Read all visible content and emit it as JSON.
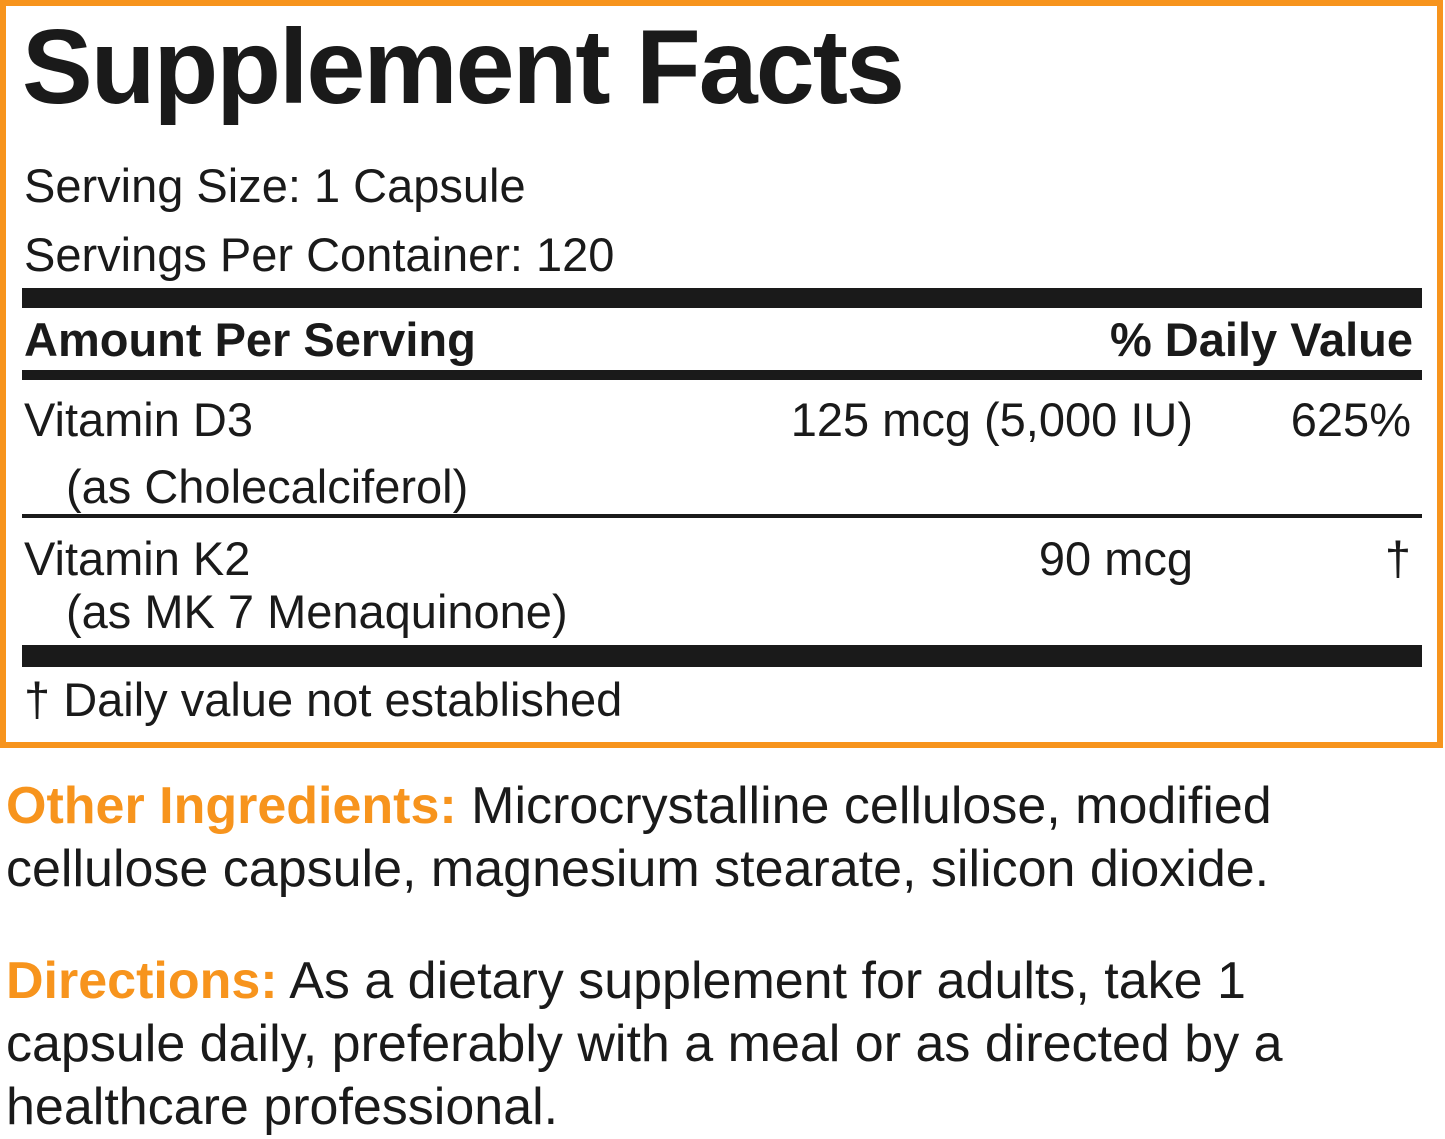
{
  "title": "Supplement Facts",
  "serving_size": "Serving Size: 1 Capsule",
  "servings_per_container": "Servings Per Container: 120",
  "header": {
    "amount": "Amount Per Serving",
    "daily_value": "% Daily Value"
  },
  "rows": [
    {
      "name": "Vitamin D3",
      "source": "(as Cholecalciferol)",
      "amount": "125 mcg (5,000 IU)",
      "daily_value": "625%"
    },
    {
      "name": "Vitamin K2",
      "source": "(as MK 7 Menaquinone)",
      "amount": "90 mcg",
      "daily_value": "†"
    }
  ],
  "footnote": "† Daily value not established",
  "other_ingredients": {
    "label": "Other Ingredients:",
    "text": "Microcrystalline cellulose, modified cellulose capsule, magnesium stearate, silicon dioxide."
  },
  "directions": {
    "label": "Directions:",
    "text": "As a dietary supplement for adults, take 1 capsule daily, preferably with a meal or as directed by a healthcare professional."
  }
}
